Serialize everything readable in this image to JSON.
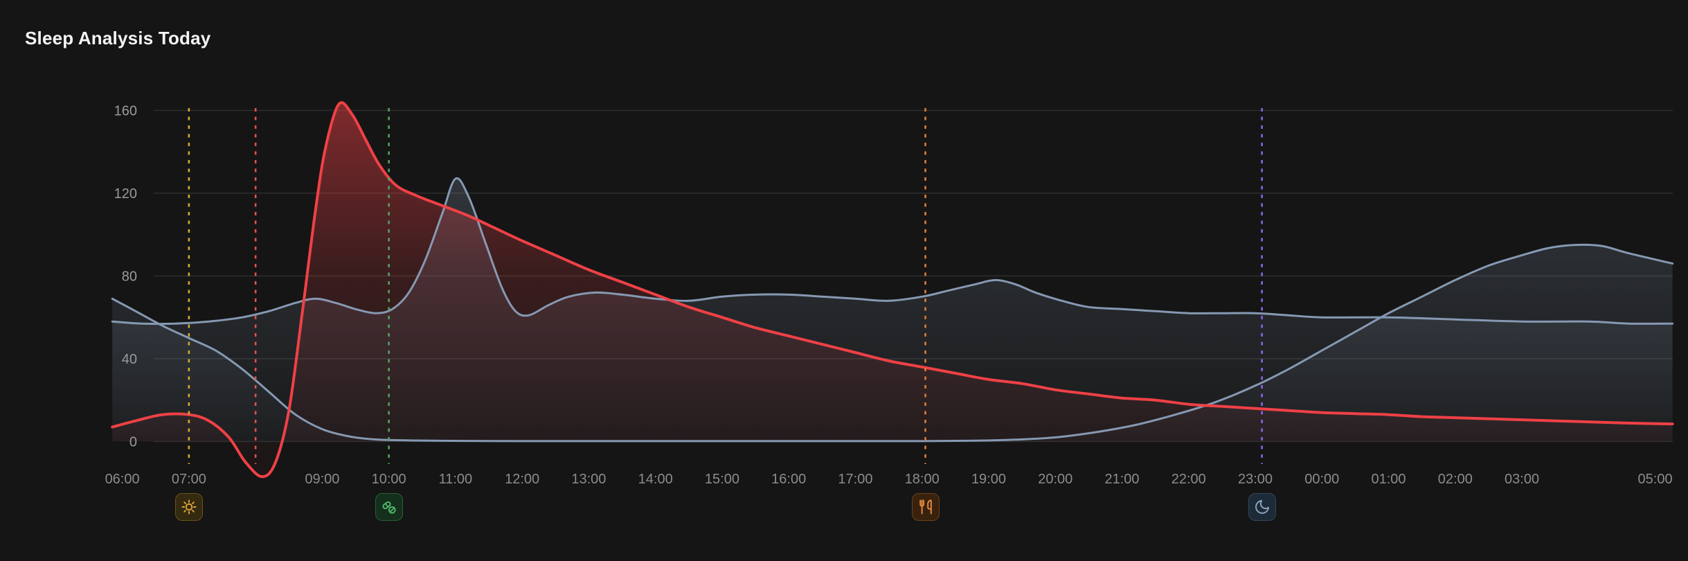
{
  "title": "Sleep Analysis Today",
  "chart_data": {
    "type": "line",
    "title": "Sleep Analysis Today",
    "background": "#151515",
    "grid": true,
    "legend": false,
    "grid_color": "#2c2c2c",
    "tick_color": "#929292",
    "x_axis": {
      "unit": "time-of-day",
      "tick_labels": [
        "06:00",
        "07:00",
        "09:00",
        "10:00",
        "11:00",
        "12:00",
        "13:00",
        "14:00",
        "15:00",
        "16:00",
        "17:00",
        "18:00",
        "19:00",
        "20:00",
        "21:00",
        "22:00",
        "23:00",
        "00:00",
        "01:00",
        "02:00",
        "03:00",
        "05:00"
      ],
      "tick_hours": [
        6,
        7,
        9,
        10,
        11,
        12,
        13,
        14,
        15,
        16,
        17,
        18,
        19,
        20,
        21,
        22,
        23,
        24,
        25,
        26,
        27,
        29
      ]
    },
    "y_axis": {
      "ticks": [
        0,
        40,
        80,
        120,
        160
      ],
      "range": [
        -28,
        172
      ]
    },
    "series": [
      {
        "name": "slate-series-night",
        "color": "#8699b3",
        "points": [
          [
            5.85,
            69
          ],
          [
            6.2,
            63
          ],
          [
            6.6,
            56
          ],
          [
            7.0,
            50
          ],
          [
            7.4,
            44
          ],
          [
            7.8,
            35
          ],
          [
            8.2,
            24
          ],
          [
            8.6,
            13
          ],
          [
            9.0,
            6
          ],
          [
            9.4,
            2.5
          ],
          [
            9.8,
            1
          ],
          [
            10.4,
            0.5
          ],
          [
            11.2,
            0.3
          ],
          [
            12,
            0.2
          ],
          [
            13,
            0.2
          ],
          [
            14,
            0.2
          ],
          [
            15,
            0.2
          ],
          [
            16,
            0.2
          ],
          [
            17,
            0.2
          ],
          [
            18,
            0.2
          ],
          [
            18.8,
            0.4
          ],
          [
            19.4,
            0.9
          ],
          [
            20.0,
            2
          ],
          [
            20.6,
            4.5
          ],
          [
            21.2,
            8
          ],
          [
            21.8,
            13
          ],
          [
            22.4,
            19
          ],
          [
            23.0,
            27
          ],
          [
            23.5,
            35
          ],
          [
            24.0,
            44
          ],
          [
            24.5,
            53
          ],
          [
            25.0,
            62
          ],
          [
            25.5,
            70
          ],
          [
            26.0,
            78
          ],
          [
            26.5,
            85
          ],
          [
            27.0,
            90
          ],
          [
            27.4,
            93.5
          ],
          [
            27.8,
            95
          ],
          [
            28.2,
            94.5
          ],
          [
            28.6,
            91
          ],
          [
            29.26,
            86
          ]
        ]
      },
      {
        "name": "slate-series-day",
        "color": "#8699b3",
        "points": [
          [
            5.85,
            58
          ],
          [
            6.3,
            57
          ],
          [
            6.8,
            57
          ],
          [
            7.3,
            58
          ],
          [
            7.8,
            60
          ],
          [
            8.2,
            63
          ],
          [
            8.6,
            67
          ],
          [
            8.9,
            69
          ],
          [
            9.2,
            67
          ],
          [
            9.5,
            64
          ],
          [
            9.8,
            62
          ],
          [
            10.05,
            64
          ],
          [
            10.3,
            72
          ],
          [
            10.55,
            88
          ],
          [
            10.8,
            110
          ],
          [
            11.0,
            127
          ],
          [
            11.2,
            118
          ],
          [
            11.45,
            96
          ],
          [
            11.7,
            74
          ],
          [
            11.9,
            63
          ],
          [
            12.1,
            61
          ],
          [
            12.4,
            66
          ],
          [
            12.7,
            70
          ],
          [
            13.1,
            72
          ],
          [
            13.5,
            71
          ],
          [
            14.0,
            69
          ],
          [
            14.5,
            68
          ],
          [
            15.0,
            70
          ],
          [
            15.5,
            71
          ],
          [
            16.0,
            71
          ],
          [
            16.5,
            70
          ],
          [
            17.0,
            69
          ],
          [
            17.5,
            68
          ],
          [
            18.0,
            70
          ],
          [
            18.4,
            73
          ],
          [
            18.8,
            76
          ],
          [
            19.1,
            78
          ],
          [
            19.4,
            76
          ],
          [
            19.7,
            72
          ],
          [
            20.1,
            68
          ],
          [
            20.5,
            65
          ],
          [
            21.0,
            64
          ],
          [
            21.5,
            63
          ],
          [
            22.0,
            62
          ],
          [
            22.5,
            62
          ],
          [
            23.0,
            62
          ],
          [
            23.5,
            61
          ],
          [
            24.0,
            60
          ],
          [
            25.0,
            60
          ],
          [
            26.0,
            59
          ],
          [
            27.0,
            58
          ],
          [
            28.0,
            58
          ],
          [
            28.6,
            57
          ],
          [
            29.26,
            57
          ]
        ]
      },
      {
        "name": "red-series",
        "color": "#ef4146",
        "points": [
          [
            5.85,
            7
          ],
          [
            6.2,
            10
          ],
          [
            6.6,
            13
          ],
          [
            7.0,
            13
          ],
          [
            7.3,
            10
          ],
          [
            7.6,
            2
          ],
          [
            7.85,
            -10
          ],
          [
            8.1,
            -17
          ],
          [
            8.3,
            -10
          ],
          [
            8.5,
            15
          ],
          [
            8.7,
            62
          ],
          [
            8.9,
            112
          ],
          [
            9.05,
            142
          ],
          [
            9.25,
            163
          ],
          [
            9.45,
            158
          ],
          [
            9.65,
            146
          ],
          [
            9.85,
            134
          ],
          [
            10.1,
            124
          ],
          [
            10.4,
            119
          ],
          [
            10.8,
            114
          ],
          [
            11.2,
            109
          ],
          [
            11.6,
            103
          ],
          [
            12.0,
            97
          ],
          [
            12.5,
            90
          ],
          [
            13.0,
            83
          ],
          [
            13.5,
            77
          ],
          [
            14.0,
            71
          ],
          [
            14.5,
            65
          ],
          [
            15.0,
            60
          ],
          [
            15.5,
            55
          ],
          [
            16.0,
            51
          ],
          [
            16.5,
            47
          ],
          [
            17.0,
            43
          ],
          [
            17.5,
            39
          ],
          [
            18.0,
            36
          ],
          [
            18.5,
            33
          ],
          [
            19.0,
            30
          ],
          [
            19.5,
            28
          ],
          [
            20.0,
            25
          ],
          [
            20.5,
            23
          ],
          [
            21.0,
            21
          ],
          [
            21.5,
            20
          ],
          [
            22.0,
            18
          ],
          [
            22.5,
            17
          ],
          [
            23.0,
            16
          ],
          [
            23.5,
            15
          ],
          [
            24.0,
            14
          ],
          [
            24.5,
            13.5
          ],
          [
            25.0,
            13
          ],
          [
            25.5,
            12
          ],
          [
            26.0,
            11.5
          ],
          [
            26.5,
            11
          ],
          [
            27.0,
            10.5
          ],
          [
            27.5,
            10
          ],
          [
            28.0,
            9.5
          ],
          [
            28.5,
            9
          ],
          [
            29.26,
            8.5
          ]
        ]
      }
    ],
    "events": [
      {
        "time": "07:00",
        "hour": 7.0,
        "line_color": "#d4a72c",
        "icon": "sun",
        "chip_bg": "#342a10",
        "chip_border": "#6b5316",
        "icon_color": "#e2a63a"
      },
      {
        "time": "08:00",
        "hour": 8.0,
        "line_color": "#e0524d",
        "icon": null
      },
      {
        "time": "10:00",
        "hour": 10.0,
        "line_color": "#55a05e",
        "icon": "pills",
        "chip_bg": "#142f1c",
        "chip_border": "#2b5e38",
        "icon_color": "#4fb56c"
      },
      {
        "time": "18:00",
        "hour": 18.05,
        "line_color": "#e07b33",
        "icon": "utensils",
        "chip_bg": "#38220e",
        "chip_border": "#6e4118",
        "icon_color": "#e78a3e"
      },
      {
        "time": "23:05",
        "hour": 23.1,
        "line_color": "#8a63e8",
        "icon": "moon",
        "chip_bg": "#1d2a38",
        "chip_border": "#35465c",
        "icon_color": "#8fa6c2"
      }
    ]
  }
}
